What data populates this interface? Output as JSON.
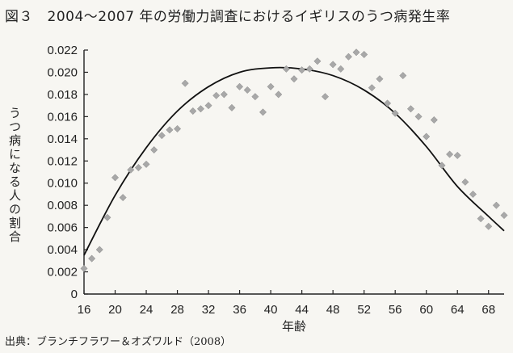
{
  "title": "図３　2004～2007 年の労働力調査におけるイギリスのうつ病発生率",
  "source": "出典：ブランチフラワー＆オズワルド（2008）",
  "chart_data": {
    "type": "scatter",
    "xlabel": "年齢",
    "ylabel": "うつ病になる人の割合",
    "xlim": [
      16,
      70
    ],
    "ylim": [
      0,
      0.022
    ],
    "xticks": [
      "16",
      "20",
      "24",
      "28",
      "32",
      "36",
      "40",
      "44",
      "48",
      "52",
      "56",
      "60",
      "64",
      "68"
    ],
    "yticks": [
      "0",
      "0.002",
      "0.004",
      "0.006",
      "0.008",
      "0.010",
      "0.012",
      "0.014",
      "0.016",
      "0.018",
      "0.020",
      "0.022"
    ],
    "grid": false,
    "series": [
      {
        "type": "scatter",
        "marker": "diamond",
        "color": "#a8a8a8",
        "points": [
          [
            16,
            0.0023
          ],
          [
            17,
            0.0032
          ],
          [
            18,
            0.004
          ],
          [
            19,
            0.0069
          ],
          [
            20,
            0.0105
          ],
          [
            21,
            0.0087
          ],
          [
            22,
            0.0112
          ],
          [
            23,
            0.0114
          ],
          [
            24,
            0.0117
          ],
          [
            25,
            0.013
          ],
          [
            26,
            0.0143
          ],
          [
            27,
            0.0148
          ],
          [
            28,
            0.0149
          ],
          [
            29,
            0.019
          ],
          [
            30,
            0.0165
          ],
          [
            31,
            0.0167
          ],
          [
            32,
            0.017
          ],
          [
            33,
            0.0179
          ],
          [
            34,
            0.018
          ],
          [
            35,
            0.0168
          ],
          [
            36,
            0.0187
          ],
          [
            37,
            0.0184
          ],
          [
            38,
            0.0178
          ],
          [
            39,
            0.0164
          ],
          [
            40,
            0.0187
          ],
          [
            41,
            0.018
          ],
          [
            42,
            0.0203
          ],
          [
            43,
            0.0194
          ],
          [
            44,
            0.0202
          ],
          [
            45,
            0.0203
          ],
          [
            46,
            0.021
          ],
          [
            47,
            0.0178
          ],
          [
            48,
            0.0207
          ],
          [
            49,
            0.0203
          ],
          [
            50,
            0.0214
          ],
          [
            51,
            0.0218
          ],
          [
            52,
            0.0216
          ],
          [
            53,
            0.0186
          ],
          [
            54,
            0.0194
          ],
          [
            55,
            0.0172
          ],
          [
            56,
            0.0163
          ],
          [
            57,
            0.0197
          ],
          [
            58,
            0.0167
          ],
          [
            59,
            0.016
          ],
          [
            60,
            0.0142
          ],
          [
            61,
            0.0157
          ],
          [
            62,
            0.0116
          ],
          [
            63,
            0.0126
          ],
          [
            64,
            0.0125
          ],
          [
            65,
            0.0101
          ],
          [
            66,
            0.009
          ],
          [
            67,
            0.0068
          ],
          [
            68,
            0.0061
          ],
          [
            69,
            0.008
          ],
          [
            70,
            0.0071
          ]
        ]
      },
      {
        "type": "line",
        "color": "#111111",
        "points": [
          [
            16,
            0.0035
          ],
          [
            20,
            0.0089
          ],
          [
            24,
            0.0132
          ],
          [
            28,
            0.0165
          ],
          [
            32,
            0.0187
          ],
          [
            36,
            0.02
          ],
          [
            40,
            0.0204
          ],
          [
            44,
            0.0203
          ],
          [
            48,
            0.0197
          ],
          [
            52,
            0.0184
          ],
          [
            56,
            0.0163
          ],
          [
            60,
            0.0133
          ],
          [
            64,
            0.0097
          ],
          [
            68,
            0.007
          ],
          [
            70,
            0.0057
          ]
        ]
      }
    ]
  }
}
